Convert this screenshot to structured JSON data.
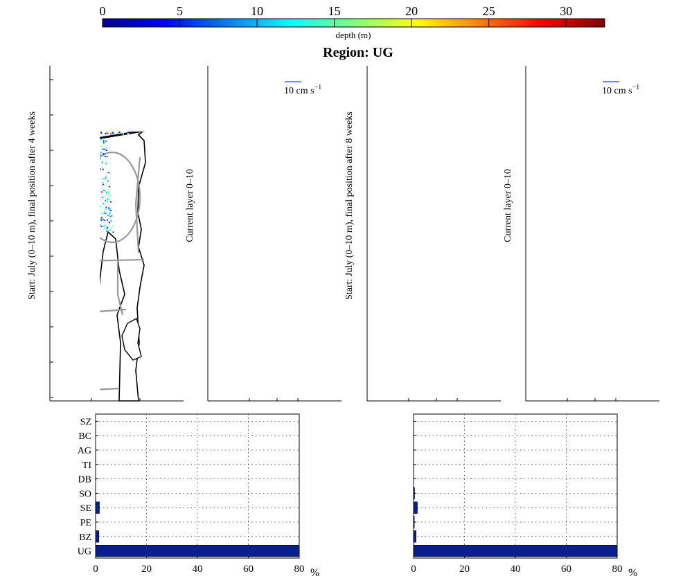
{
  "title": "Region: UG",
  "colorbar": {
    "label": "depth (m)",
    "ticks": [
      "0",
      "5",
      "10",
      "15",
      "20",
      "25",
      "30"
    ],
    "range": [
      0,
      32.5
    ],
    "colors": [
      "#00008f",
      "#0000ff",
      "#0080ff",
      "#00ffff",
      "#80ff80",
      "#ffff00",
      "#ff8000",
      "#ff0000",
      "#800000"
    ]
  },
  "panels": [
    {
      "kind": "particles",
      "ylabel": "Start: July (0–10 m), final position after 4 weeks"
    },
    {
      "kind": "current",
      "ylabel": "Current layer 0–10",
      "scale_text": "10 cm s",
      "scale_sup": "−1"
    },
    {
      "kind": "particles",
      "ylabel": "Start: July (0–10 m), final position after 8 weeks"
    },
    {
      "kind": "current",
      "ylabel": "Current layer 0–10",
      "scale_text": "10 cm s",
      "scale_sup": "−1"
    }
  ],
  "colors": {
    "bar": "#0a1f8f",
    "vector": "#1f3ddb",
    "region": "#999999",
    "shore": "#000000"
  },
  "chart_data": [
    {
      "type": "bar",
      "orientation": "horizontal",
      "categories": [
        "SZ",
        "BC",
        "AG",
        "TI",
        "DB",
        "SO",
        "SE",
        "PE",
        "BZ",
        "UG"
      ],
      "values": [
        0,
        0,
        0,
        0,
        0,
        0,
        1.5,
        0,
        1.3,
        80
      ],
      "xlabel": "%",
      "xticks": [
        "0",
        "20",
        "40",
        "60",
        "80"
      ],
      "xlim": [
        0,
        80
      ],
      "grid": true
    },
    {
      "type": "bar",
      "orientation": "horizontal",
      "categories": [
        "SZ",
        "BC",
        "AG",
        "TI",
        "DB",
        "SO",
        "SE",
        "PE",
        "BZ",
        "UG"
      ],
      "values": [
        0,
        0,
        0,
        0,
        0,
        0.4,
        1.5,
        0.3,
        1.0,
        80
      ],
      "xlabel": "%",
      "xticks": [
        "0",
        "20",
        "40",
        "60",
        "80"
      ],
      "xlim": [
        0,
        80
      ],
      "grid": true
    }
  ]
}
